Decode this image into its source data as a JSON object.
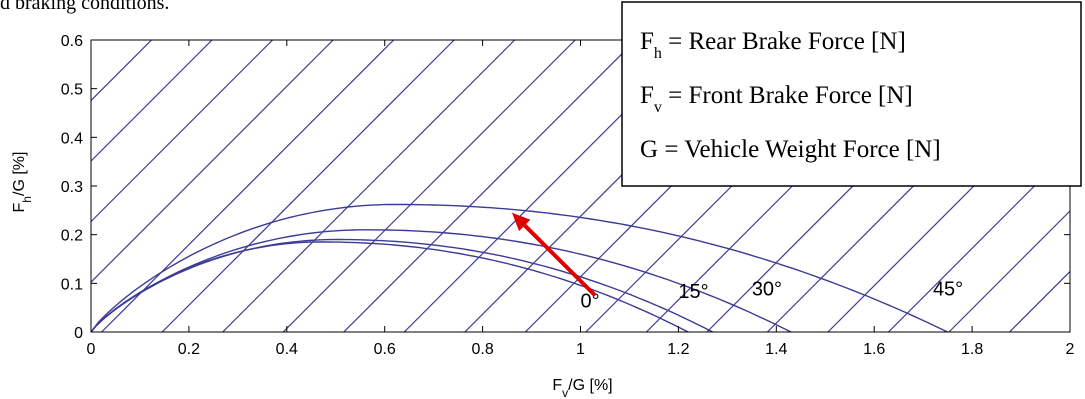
{
  "cut_text": "d braking conditions.",
  "chart_data": {
    "type": "line",
    "xlabel": "F_v/G [%]",
    "ylabel": "F_h/G [%]",
    "xlim": [
      0,
      2
    ],
    "ylim": [
      0,
      0.6
    ],
    "x_ticks": [
      "0",
      "0.2",
      "0.4",
      "0.6",
      "0.8",
      "1",
      "1.2",
      "1.4",
      "1.6",
      "1.8",
      "2"
    ],
    "y_ticks": [
      "0",
      "0.1",
      "0.2",
      "0.3",
      "0.4",
      "0.5",
      "0.6"
    ],
    "grid": false,
    "diagonal_lines": {
      "slope": -1,
      "count": 22
    },
    "colors": {
      "curve": "#3c3c96",
      "diagonal": "#3c3c96",
      "arrow": "#e00000"
    },
    "series": [
      {
        "label": "0°",
        "peak": [
          0.47,
          0.185
        ],
        "x_end": 1.22,
        "label_pos": [
          1.0,
          0.05
        ]
      },
      {
        "label": "",
        "peak": [
          0.5,
          0.19
        ],
        "x_end": 1.27,
        "label_pos": null
      },
      {
        "label": "15°",
        "peak": [
          0.56,
          0.21
        ],
        "x_end": 1.43,
        "label_pos": [
          1.2,
          0.07
        ]
      },
      {
        "label": "30°",
        "peak": [
          0.62,
          0.262
        ],
        "x_end": 1.75,
        "label_pos": [
          1.35,
          0.075
        ]
      },
      {
        "label": "45°",
        "peak": null,
        "x_end": null,
        "label_pos": [
          1.72,
          0.075
        ]
      }
    ],
    "arrow": {
      "from": [
        1.03,
        0.075
      ],
      "to": [
        0.86,
        0.245
      ]
    },
    "legend": {
      "position": "top-right",
      "lines": [
        {
          "symbol": "F",
          "sub": "h",
          "text": " = Rear Brake Force [N]"
        },
        {
          "symbol": "F",
          "sub": "v",
          "text": " = Front Brake Force [N]"
        },
        {
          "symbol": "G",
          "sub": "",
          "text": " = Vehicle Weight Force [N]"
        }
      ]
    }
  }
}
